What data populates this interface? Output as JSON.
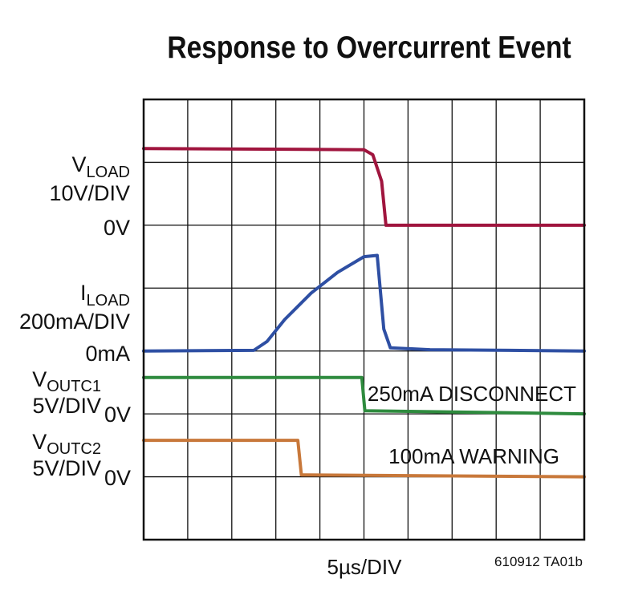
{
  "title": "Response to Overcurrent Event",
  "chart_data": {
    "type": "line",
    "x_scale_label": "5µs/DIV",
    "x_divisions": 10,
    "y_divisions": 7,
    "grid": true,
    "traces": [
      {
        "symbol": "V",
        "subscript": "LOAD",
        "scale": "10V/DIV",
        "zero_label": "0V",
        "color": "#a0153e",
        "zero_div": 5,
        "points": [
          [
            0.0,
            1.22
          ],
          [
            5.0,
            1.2
          ],
          [
            5.2,
            1.12
          ],
          [
            5.4,
            0.7
          ],
          [
            5.5,
            0.0
          ],
          [
            10.0,
            0.0
          ]
        ]
      },
      {
        "symbol": "I",
        "subscript": "LOAD",
        "scale": "200mA/DIV",
        "zero_label": "0mA",
        "color": "#2e4fa3",
        "zero_div": 3,
        "points": [
          [
            0.0,
            0.0
          ],
          [
            2.5,
            0.01
          ],
          [
            2.8,
            0.15
          ],
          [
            3.2,
            0.5
          ],
          [
            3.8,
            0.92
          ],
          [
            4.4,
            1.25
          ],
          [
            5.0,
            1.5
          ],
          [
            5.3,
            1.52
          ],
          [
            5.45,
            0.35
          ],
          [
            5.6,
            0.05
          ],
          [
            6.5,
            0.02
          ],
          [
            10.0,
            0.0
          ]
        ]
      },
      {
        "symbol": "V",
        "subscript": "OUTC1",
        "scale": "5V/DIV",
        "zero_label": "0V",
        "color": "#2e8b3e",
        "zero_div": 2,
        "annotation": "250mA DISCONNECT",
        "points": [
          [
            0.0,
            0.58
          ],
          [
            4.95,
            0.58
          ],
          [
            5.02,
            0.05
          ],
          [
            10.0,
            0.0
          ]
        ]
      },
      {
        "symbol": "V",
        "subscript": "OUTC2",
        "scale": "5V/DIV",
        "zero_label": "0V",
        "color": "#c8783a",
        "zero_div": 1,
        "annotation": "100mA WARNING",
        "points": [
          [
            0.0,
            0.58
          ],
          [
            3.5,
            0.58
          ],
          [
            3.58,
            0.03
          ],
          [
            10.0,
            0.0
          ]
        ]
      }
    ]
  },
  "footnote": "610912 TA01b"
}
